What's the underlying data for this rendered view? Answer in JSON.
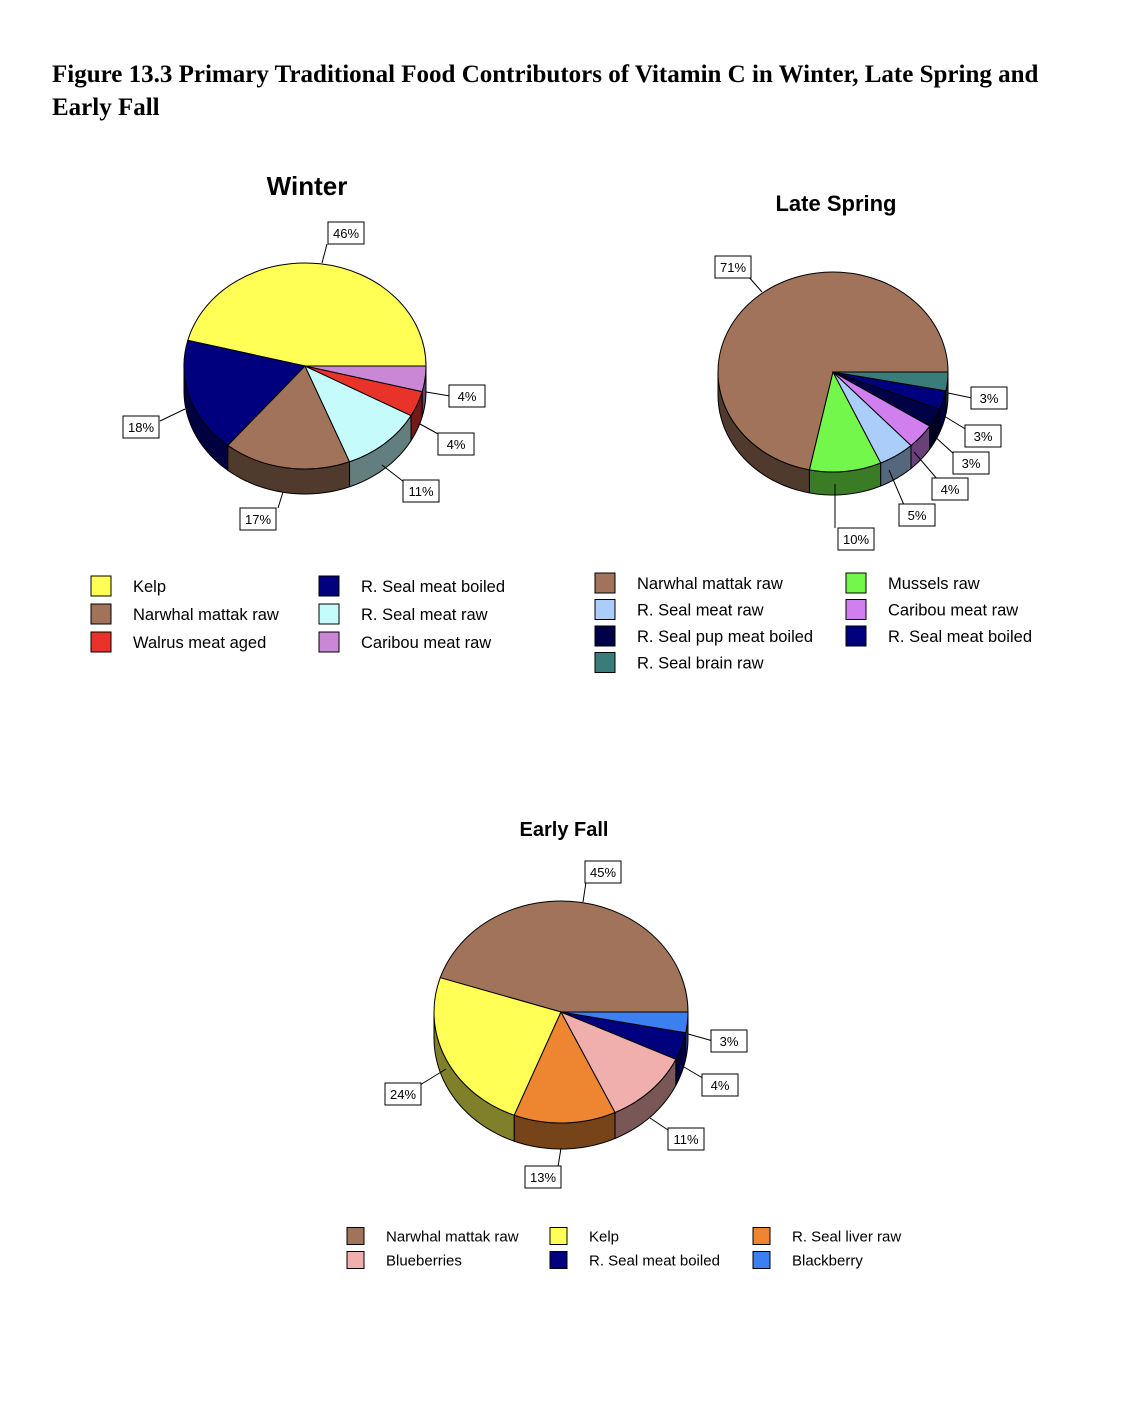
{
  "figure_title": "Figure 13.3 Primary Traditional Food Contributors of Vitamin C in Winter, Late Spring and Early Fall",
  "chart_data": [
    {
      "type": "pie",
      "title": "Winter",
      "categories": [
        "Kelp",
        "R. Seal meat boiled",
        "Narwhal mattak raw",
        "R. Seal meat raw",
        "Walrus meat aged",
        "Caribou meat raw"
      ],
      "values": [
        46,
        18,
        17,
        11,
        4,
        4
      ],
      "value_labels": [
        "46%",
        "18%",
        "17%",
        "11%",
        "4%",
        "4%"
      ],
      "colors": [
        "#ffff55",
        "#00007f",
        "#a0735a",
        "#c6fbfc",
        "#e8322a",
        "#c987d6"
      ],
      "legend": {
        "columns": 2,
        "items": [
          "Kelp",
          "Narwhal mattak raw",
          "Walrus meat aged",
          "R. Seal meat boiled",
          "R. Seal meat raw",
          "Caribou meat raw"
        ],
        "colors": [
          "#ffff55",
          "#a0735a",
          "#e8322a",
          "#00007f",
          "#c6fbfc",
          "#c987d6"
        ]
      }
    },
    {
      "type": "pie",
      "title": "Late Spring",
      "categories": [
        "Narwhal mattak raw",
        "Mussels raw",
        "R.  Seal meat raw",
        "Caribou meat raw",
        "R. Seal pup meat boiled",
        "R. Seal meat boiled",
        "R. Seal brain raw"
      ],
      "values": [
        71,
        10,
        5,
        4,
        3,
        3,
        3
      ],
      "value_labels": [
        "71%",
        "10%",
        "5%",
        "4%",
        "3%",
        "3%",
        "3%"
      ],
      "colors": [
        "#a0735a",
        "#73f74a",
        "#aacdf9",
        "#d17fee",
        "#000046",
        "#00007f",
        "#3a7c7a"
      ],
      "legend": {
        "columns": 2,
        "items": [
          "Narwhal mattak raw",
          "R.  Seal meat raw",
          "R. Seal pup meat boiled",
          "R. Seal brain raw",
          "Mussels raw",
          "Caribou meat raw",
          "R. Seal meat boiled"
        ],
        "colors": [
          "#a0735a",
          "#aacdf9",
          "#000046",
          "#3a7c7a",
          "#73f74a",
          "#d17fee",
          "#00007f"
        ]
      }
    },
    {
      "type": "pie",
      "title": "Early Fall",
      "categories": [
        "Narwhal mattak raw",
        "Kelp",
        "R. Seal liver raw",
        "Blueberries",
        "R. Seal meat boiled",
        "Blackberry"
      ],
      "values": [
        45,
        24,
        13,
        11,
        4,
        3
      ],
      "value_labels": [
        "45%",
        "24%",
        "13%",
        "11%",
        "4%",
        "3%"
      ],
      "colors": [
        "#a0735a",
        "#ffff55",
        "#ee8530",
        "#f0aeac",
        "#00007f",
        "#3b7ff0"
      ],
      "legend": {
        "columns": 3,
        "items": [
          "Narwhal mattak raw",
          "Blueberries",
          "Kelp",
          "R. Seal meat boiled",
          "R. Seal liver raw",
          "Blackberry"
        ],
        "colors": [
          "#a0735a",
          "#f0aeac",
          "#ffff55",
          "#00007f",
          "#ee8530",
          "#3b7ff0"
        ]
      }
    }
  ]
}
